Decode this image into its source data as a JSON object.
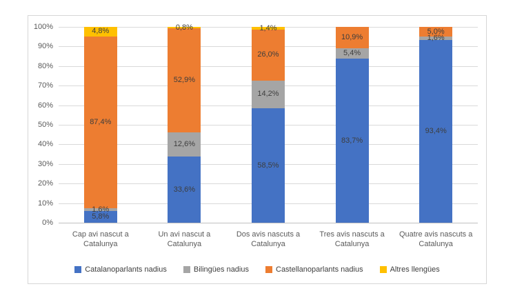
{
  "chart_data": {
    "type": "bar",
    "stacked": true,
    "percent_stacked": true,
    "title": "",
    "xlabel": "",
    "ylabel": "",
    "ylim": [
      0,
      100
    ],
    "grid": true,
    "legend_position": "bottom",
    "gridline_color": "#d9d9d9",
    "axis_text_color": "#595959",
    "data_label_color": "#3d3d3d",
    "categories": [
      "Cap avi nascut a Catalunya",
      "Un avi nascut a Catalunya",
      "Dos avis nascuts a Catalunya",
      "Tres avis nascuts a Catalunya",
      "Quatre avis nascuts a Catalunya"
    ],
    "series": [
      {
        "name": "Catalanoparlants nadius",
        "color": "#4472C4",
        "values": [
          5.8,
          33.6,
          58.5,
          83.7,
          93.4
        ]
      },
      {
        "name": "Bilingües nadius",
        "color": "#A5A5A5",
        "values": [
          1.6,
          12.6,
          14.2,
          5.4,
          1.6
        ]
      },
      {
        "name": "Castellanoparlants nadius",
        "color": "#ED7D31",
        "values": [
          87.4,
          52.9,
          26.0,
          10.9,
          5.0
        ]
      },
      {
        "name": "Altres llengües",
        "color": "#FFC000",
        "values": [
          4.8,
          0.8,
          1.4,
          0,
          0
        ]
      }
    ],
    "labels": [
      [
        "5,8%",
        "33,6%",
        "58,5%",
        "83,7%",
        "93,4%"
      ],
      [
        "1,6%",
        "12,6%",
        "14,2%",
        "5,4%",
        "1,6%"
      ],
      [
        "87,4%",
        "52,9%",
        "26,0%",
        "10,9%",
        "5,0%"
      ],
      [
        "4,8%",
        "0,8%",
        "1,4%",
        "",
        ""
      ]
    ],
    "y_ticks": [
      "100%",
      "90%",
      "80%",
      "70%",
      "60%",
      "50%",
      "40%",
      "30%",
      "20%",
      "10%",
      "0%"
    ]
  }
}
